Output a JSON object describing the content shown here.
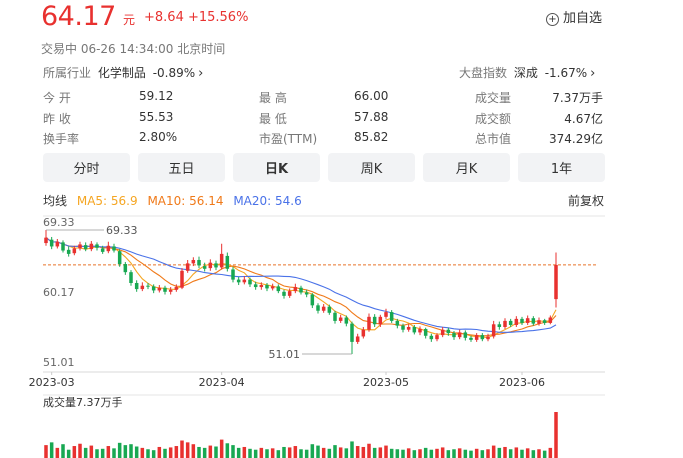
{
  "header": {
    "price": "64.17",
    "unit": "元",
    "change": "+8.64 +15.56%",
    "add_fav_label": "加自选",
    "add_fav_icon": "plus-circle-icon",
    "status": "交易中  06-26 14:34:00  北京时间"
  },
  "industry": {
    "label": "所属行业",
    "name": "化学制品",
    "change": "-0.89%"
  },
  "index": {
    "label": "大盘指数",
    "name": "深成",
    "change": "-1.67%"
  },
  "stats": [
    [
      {
        "label": "今  开",
        "value": "59.12",
        "color": "red"
      },
      {
        "label": "最  高",
        "value": "66.00",
        "color": "red"
      },
      {
        "label": "成交量",
        "value": "7.37万手",
        "color": "normal"
      }
    ],
    [
      {
        "label": "昨  收",
        "value": "55.53",
        "color": "normal"
      },
      {
        "label": "最  低",
        "value": "57.88",
        "color": "red"
      },
      {
        "label": "成交额",
        "value": "4.67亿",
        "color": "normal"
      }
    ],
    [
      {
        "label": "换手率",
        "value": "2.80%",
        "color": "normal"
      },
      {
        "label": "市盈(TTM)",
        "value": "85.82",
        "color": "normal"
      },
      {
        "label": "总市值",
        "value": "374.29亿",
        "color": "normal"
      }
    ]
  ],
  "tabs": [
    "分时",
    "五日",
    "日K",
    "周K",
    "月K",
    "1年"
  ],
  "active_tab": "日K",
  "ma_bar": {
    "label": "均线",
    "ma5": "MA5: 56.9",
    "ma10": "MA10: 56.14",
    "ma20": "MA20: 54.6",
    "adjust": "前复权"
  },
  "colors": {
    "up": "#e8312f",
    "down": "#18a852",
    "ma5": "#f5a623",
    "ma10": "#f07a1a",
    "ma20": "#4a72e8",
    "ref_line": "#e8742a"
  },
  "chart_data": {
    "type": "candlestick",
    "y_ticks": [
      "69.33",
      "60.17",
      "51.01"
    ],
    "x_ticks": [
      "2023-03",
      "2023-04",
      "2023-05",
      "2023-06"
    ],
    "ylim": [
      51.01,
      69.33
    ],
    "annotations": {
      "high": "69.33",
      "low": "51.01"
    },
    "reference_line": 64.17,
    "volume_label": "成交量7.37万手",
    "candles": [
      {
        "o": 67.4,
        "c": 68.2,
        "h": 69.33,
        "l": 67.0
      },
      {
        "o": 67.9,
        "c": 66.9,
        "h": 68.3,
        "l": 66.5
      },
      {
        "o": 66.9,
        "c": 67.6,
        "h": 68.0,
        "l": 66.6
      },
      {
        "o": 67.5,
        "c": 66.3,
        "h": 67.8,
        "l": 66.0
      },
      {
        "o": 66.4,
        "c": 65.8,
        "h": 66.9,
        "l": 65.4
      },
      {
        "o": 65.9,
        "c": 66.6,
        "h": 67.0,
        "l": 65.6
      },
      {
        "o": 66.6,
        "c": 67.2,
        "h": 67.6,
        "l": 66.3
      },
      {
        "o": 67.1,
        "c": 66.5,
        "h": 67.5,
        "l": 66.2
      },
      {
        "o": 66.5,
        "c": 67.3,
        "h": 67.7,
        "l": 66.2
      },
      {
        "o": 67.2,
        "c": 66.7,
        "h": 67.5,
        "l": 66.3
      },
      {
        "o": 66.6,
        "c": 66.1,
        "h": 67.0,
        "l": 65.8
      },
      {
        "o": 66.2,
        "c": 67.0,
        "h": 67.6,
        "l": 65.9
      },
      {
        "o": 66.9,
        "c": 66.3,
        "h": 67.3,
        "l": 66.0
      },
      {
        "o": 66.2,
        "c": 64.3,
        "h": 66.5,
        "l": 63.9
      },
      {
        "o": 64.3,
        "c": 63.1,
        "h": 64.6,
        "l": 62.7
      },
      {
        "o": 63.1,
        "c": 61.5,
        "h": 63.4,
        "l": 61.1
      },
      {
        "o": 61.5,
        "c": 60.6,
        "h": 61.9,
        "l": 60.2
      },
      {
        "o": 60.6,
        "c": 61.1,
        "h": 61.6,
        "l": 60.3
      },
      {
        "o": 61.1,
        "c": 61.0,
        "h": 61.5,
        "l": 60.6
      },
      {
        "o": 61.0,
        "c": 60.4,
        "h": 61.3,
        "l": 60.0
      },
      {
        "o": 60.4,
        "c": 60.8,
        "h": 61.2,
        "l": 60.1
      },
      {
        "o": 60.8,
        "c": 60.2,
        "h": 61.1,
        "l": 59.8
      },
      {
        "o": 60.2,
        "c": 60.5,
        "h": 60.9,
        "l": 59.8
      },
      {
        "o": 60.5,
        "c": 60.9,
        "h": 61.3,
        "l": 60.2
      },
      {
        "o": 60.8,
        "c": 63.3,
        "h": 63.7,
        "l": 60.6
      },
      {
        "o": 63.3,
        "c": 64.4,
        "h": 64.9,
        "l": 63.0
      },
      {
        "o": 64.4,
        "c": 64.9,
        "h": 65.3,
        "l": 64.0
      },
      {
        "o": 64.9,
        "c": 64.1,
        "h": 65.4,
        "l": 63.7
      },
      {
        "o": 64.0,
        "c": 63.6,
        "h": 64.5,
        "l": 63.2
      },
      {
        "o": 63.7,
        "c": 64.5,
        "h": 65.0,
        "l": 63.3
      },
      {
        "o": 64.4,
        "c": 63.8,
        "h": 64.8,
        "l": 63.4
      },
      {
        "o": 63.8,
        "c": 65.8,
        "h": 67.3,
        "l": 63.5
      },
      {
        "o": 65.5,
        "c": 63.6,
        "h": 66.0,
        "l": 63.2
      },
      {
        "o": 63.5,
        "c": 62.0,
        "h": 63.9,
        "l": 61.6
      },
      {
        "o": 62.0,
        "c": 61.6,
        "h": 62.4,
        "l": 61.2
      },
      {
        "o": 61.6,
        "c": 62.0,
        "h": 62.5,
        "l": 61.3
      },
      {
        "o": 62.0,
        "c": 61.3,
        "h": 62.3,
        "l": 60.9
      },
      {
        "o": 61.3,
        "c": 60.9,
        "h": 61.7,
        "l": 60.5
      },
      {
        "o": 60.9,
        "c": 61.2,
        "h": 61.6,
        "l": 60.5
      },
      {
        "o": 61.2,
        "c": 60.7,
        "h": 61.5,
        "l": 60.3
      },
      {
        "o": 60.7,
        "c": 61.0,
        "h": 61.4,
        "l": 60.4
      },
      {
        "o": 61.0,
        "c": 60.3,
        "h": 61.3,
        "l": 60.0
      },
      {
        "o": 60.2,
        "c": 59.6,
        "h": 60.5,
        "l": 59.2
      },
      {
        "o": 59.6,
        "c": 60.3,
        "h": 60.7,
        "l": 59.3
      },
      {
        "o": 60.3,
        "c": 60.9,
        "h": 61.4,
        "l": 60.0
      },
      {
        "o": 60.8,
        "c": 60.1,
        "h": 61.1,
        "l": 59.8
      },
      {
        "o": 60.1,
        "c": 59.8,
        "h": 60.5,
        "l": 59.4
      },
      {
        "o": 59.8,
        "c": 58.2,
        "h": 60.0,
        "l": 57.8
      },
      {
        "o": 58.2,
        "c": 57.4,
        "h": 58.5,
        "l": 57.0
      },
      {
        "o": 57.4,
        "c": 58.0,
        "h": 58.4,
        "l": 57.1
      },
      {
        "o": 58.0,
        "c": 57.1,
        "h": 58.3,
        "l": 56.8
      },
      {
        "o": 57.1,
        "c": 55.9,
        "h": 57.4,
        "l": 55.5
      },
      {
        "o": 55.9,
        "c": 56.4,
        "h": 56.8,
        "l": 55.6
      },
      {
        "o": 56.4,
        "c": 55.5,
        "h": 56.7,
        "l": 55.1
      },
      {
        "o": 55.5,
        "c": 52.8,
        "h": 55.8,
        "l": 51.01
      },
      {
        "o": 52.8,
        "c": 53.6,
        "h": 54.0,
        "l": 52.5
      },
      {
        "o": 53.6,
        "c": 54.6,
        "h": 55.0,
        "l": 53.3
      },
      {
        "o": 54.6,
        "c": 56.5,
        "h": 57.0,
        "l": 54.3
      },
      {
        "o": 56.5,
        "c": 55.4,
        "h": 56.9,
        "l": 55.0
      },
      {
        "o": 55.4,
        "c": 56.5,
        "h": 56.8,
        "l": 55.0
      },
      {
        "o": 56.5,
        "c": 57.2,
        "h": 57.7,
        "l": 56.2
      },
      {
        "o": 57.2,
        "c": 55.9,
        "h": 57.5,
        "l": 55.6
      },
      {
        "o": 55.9,
        "c": 55.2,
        "h": 56.2,
        "l": 54.8
      },
      {
        "o": 55.2,
        "c": 54.6,
        "h": 55.5,
        "l": 54.2
      },
      {
        "o": 54.6,
        "c": 55.0,
        "h": 55.4,
        "l": 54.3
      },
      {
        "o": 55.0,
        "c": 54.2,
        "h": 55.3,
        "l": 53.9
      },
      {
        "o": 54.2,
        "c": 54.7,
        "h": 55.1,
        "l": 53.8
      },
      {
        "o": 54.7,
        "c": 53.7,
        "h": 54.9,
        "l": 53.3
      },
      {
        "o": 53.7,
        "c": 53.2,
        "h": 54.0,
        "l": 52.8
      },
      {
        "o": 53.2,
        "c": 53.8,
        "h": 54.1,
        "l": 52.9
      },
      {
        "o": 53.8,
        "c": 54.6,
        "h": 55.0,
        "l": 53.5
      },
      {
        "o": 54.6,
        "c": 54.1,
        "h": 54.9,
        "l": 53.7
      },
      {
        "o": 54.1,
        "c": 53.5,
        "h": 54.4,
        "l": 53.1
      },
      {
        "o": 53.5,
        "c": 54.2,
        "h": 54.6,
        "l": 53.2
      },
      {
        "o": 54.2,
        "c": 53.4,
        "h": 54.5,
        "l": 53.0
      },
      {
        "o": 53.4,
        "c": 53.1,
        "h": 53.7,
        "l": 52.8
      },
      {
        "o": 53.1,
        "c": 53.8,
        "h": 54.1,
        "l": 52.8
      },
      {
        "o": 53.8,
        "c": 53.2,
        "h": 54.1,
        "l": 52.9
      },
      {
        "o": 53.2,
        "c": 53.6,
        "h": 54.0,
        "l": 52.9
      },
      {
        "o": 53.6,
        "c": 55.4,
        "h": 55.9,
        "l": 53.3
      },
      {
        "o": 55.4,
        "c": 55.0,
        "h": 55.8,
        "l": 54.6
      },
      {
        "o": 55.0,
        "c": 55.9,
        "h": 56.3,
        "l": 54.7
      },
      {
        "o": 55.9,
        "c": 55.3,
        "h": 56.2,
        "l": 55.0
      },
      {
        "o": 55.3,
        "c": 56.2,
        "h": 56.6,
        "l": 55.0
      },
      {
        "o": 56.2,
        "c": 55.6,
        "h": 56.5,
        "l": 55.3
      },
      {
        "o": 55.6,
        "c": 56.3,
        "h": 56.7,
        "l": 55.3
      },
      {
        "o": 56.3,
        "c": 55.5,
        "h": 56.6,
        "l": 55.2
      },
      {
        "o": 55.5,
        "c": 56.0,
        "h": 56.4,
        "l": 55.2
      },
      {
        "o": 56.0,
        "c": 55.6,
        "h": 56.2,
        "l": 55.3
      },
      {
        "o": 55.6,
        "c": 56.4,
        "h": 56.7,
        "l": 55.4
      },
      {
        "o": 59.12,
        "c": 64.17,
        "h": 66.0,
        "l": 57.88
      }
    ],
    "volume": [
      28,
      34,
      22,
      30,
      18,
      26,
      31,
      22,
      27,
      19,
      20,
      26,
      21,
      33,
      28,
      30,
      25,
      22,
      19,
      17,
      24,
      20,
      23,
      26,
      38,
      34,
      30,
      24,
      22,
      27,
      25,
      40,
      32,
      28,
      22,
      24,
      20,
      18,
      22,
      19,
      21,
      17,
      24,
      23,
      26,
      19,
      18,
      30,
      27,
      22,
      20,
      28,
      23,
      21,
      36,
      26,
      24,
      31,
      22,
      23,
      27,
      20,
      19,
      18,
      21,
      17,
      19,
      22,
      18,
      20,
      23,
      17,
      19,
      21,
      18,
      16,
      20,
      17,
      19,
      27,
      22,
      24,
      19,
      23,
      18,
      21,
      17,
      19,
      16,
      22,
      100
    ]
  }
}
